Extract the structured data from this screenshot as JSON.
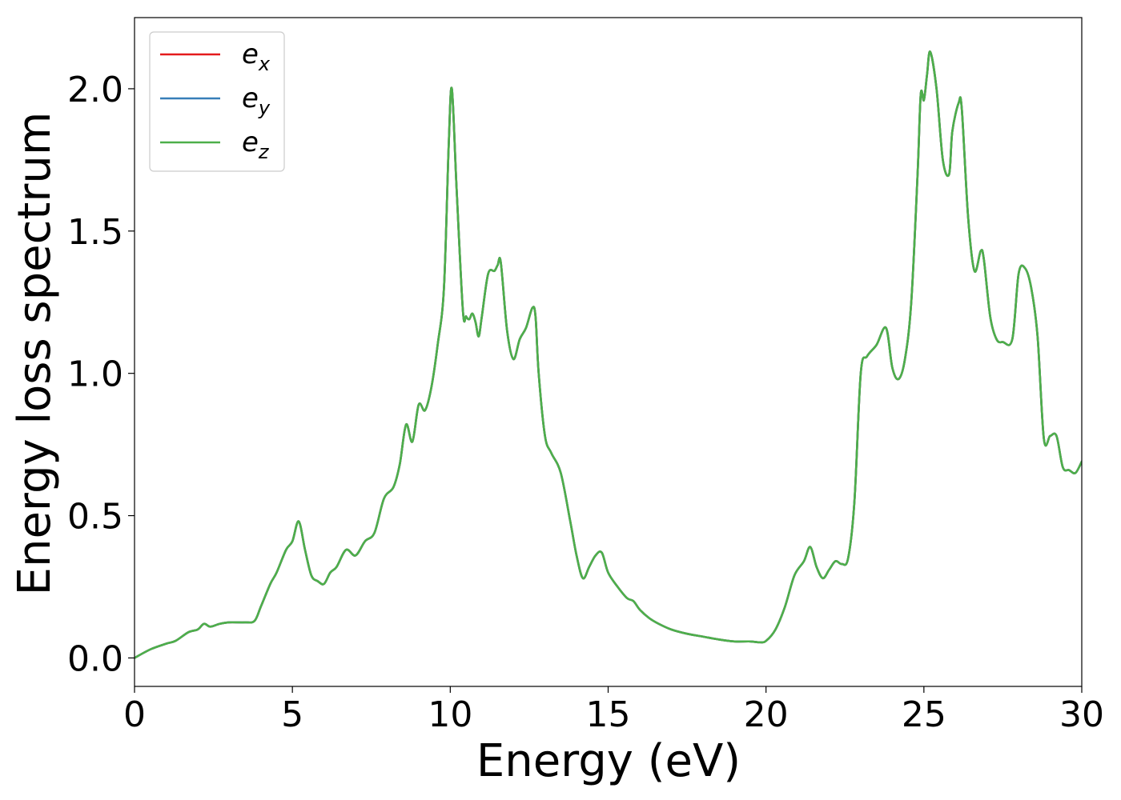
{
  "chart_data": {
    "type": "line",
    "title": "",
    "xlabel": "Energy (eV)",
    "ylabel": "Energy loss spectrum",
    "xlim": [
      0,
      30
    ],
    "ylim": [
      -0.1,
      2.25
    ],
    "xticks": [
      0,
      5,
      10,
      15,
      20,
      25,
      30
    ],
    "xtick_labels": [
      "0",
      "5",
      "10",
      "15",
      "20",
      "25",
      "30"
    ],
    "yticks": [
      0.0,
      0.5,
      1.0,
      1.5,
      2.0
    ],
    "ytick_labels": [
      "0.0",
      "0.5",
      "1.0",
      "1.5",
      "2.0"
    ],
    "grid": false,
    "legend_position": "top-left",
    "series": [
      {
        "name": "e_x",
        "label_base": "e",
        "label_sub": "x",
        "color": "#e41a1c"
      },
      {
        "name": "e_y",
        "label_base": "e",
        "label_sub": "y",
        "color": "#377eb8"
      },
      {
        "name": "e_z",
        "label_base": "e",
        "label_sub": "z",
        "color": "#4daf4a"
      }
    ],
    "x": [
      0,
      0.5,
      1.0,
      1.3,
      1.7,
      2.0,
      2.2,
      2.4,
      2.7,
      3.0,
      3.5,
      3.8,
      4.0,
      4.3,
      4.5,
      4.8,
      5.0,
      5.2,
      5.4,
      5.6,
      5.8,
      6.0,
      6.2,
      6.4,
      6.7,
      7.0,
      7.3,
      7.6,
      7.9,
      8.2,
      8.4,
      8.6,
      8.8,
      9.0,
      9.2,
      9.4,
      9.6,
      9.8,
      9.95,
      10.05,
      10.2,
      10.4,
      10.5,
      10.6,
      10.7,
      10.8,
      10.9,
      11.0,
      11.2,
      11.4,
      11.5,
      11.6,
      11.8,
      12.0,
      12.2,
      12.4,
      12.6,
      12.7,
      12.8,
      13.0,
      13.2,
      13.5,
      13.8,
      14.0,
      14.2,
      14.4,
      14.6,
      14.8,
      15.0,
      15.3,
      15.6,
      15.8,
      16.0,
      16.3,
      16.6,
      17.0,
      17.5,
      18.0,
      18.5,
      19.0,
      19.5,
      19.8,
      20.0,
      20.3,
      20.6,
      20.9,
      21.2,
      21.4,
      21.6,
      21.8,
      22.0,
      22.2,
      22.4,
      22.6,
      22.8,
      23.0,
      23.2,
      23.5,
      23.8,
      24.0,
      24.2,
      24.4,
      24.6,
      24.8,
      24.9,
      25.0,
      25.1,
      25.2,
      25.4,
      25.6,
      25.8,
      25.9,
      26.1,
      26.2,
      26.4,
      26.6,
      26.8,
      26.9,
      27.1,
      27.3,
      27.5,
      27.8,
      28.0,
      28.2,
      28.4,
      28.6,
      28.8,
      29.0,
      29.2,
      29.4,
      29.6,
      29.8,
      30.0
    ],
    "y": [
      0.0,
      0.03,
      0.05,
      0.06,
      0.09,
      0.1,
      0.12,
      0.11,
      0.12,
      0.125,
      0.125,
      0.13,
      0.18,
      0.26,
      0.3,
      0.38,
      0.41,
      0.48,
      0.38,
      0.29,
      0.27,
      0.26,
      0.3,
      0.32,
      0.38,
      0.36,
      0.41,
      0.44,
      0.56,
      0.6,
      0.68,
      0.82,
      0.76,
      0.89,
      0.87,
      0.95,
      1.1,
      1.3,
      1.8,
      2.0,
      1.65,
      1.22,
      1.2,
      1.19,
      1.21,
      1.18,
      1.13,
      1.2,
      1.35,
      1.36,
      1.38,
      1.39,
      1.15,
      1.05,
      1.12,
      1.16,
      1.23,
      1.2,
      1.0,
      0.78,
      0.72,
      0.65,
      0.48,
      0.36,
      0.28,
      0.32,
      0.36,
      0.37,
      0.3,
      0.25,
      0.21,
      0.2,
      0.17,
      0.14,
      0.12,
      0.1,
      0.085,
      0.075,
      0.065,
      0.058,
      0.058,
      0.055,
      0.06,
      0.1,
      0.18,
      0.29,
      0.34,
      0.39,
      0.32,
      0.28,
      0.31,
      0.34,
      0.33,
      0.35,
      0.55,
      1.0,
      1.06,
      1.1,
      1.16,
      1.02,
      0.98,
      1.05,
      1.25,
      1.7,
      1.98,
      1.96,
      2.05,
      2.13,
      2.0,
      1.75,
      1.7,
      1.85,
      1.95,
      1.93,
      1.55,
      1.36,
      1.43,
      1.4,
      1.2,
      1.12,
      1.11,
      1.12,
      1.35,
      1.37,
      1.3,
      1.13,
      0.77,
      0.78,
      0.78,
      0.67,
      0.66,
      0.65,
      0.69
    ]
  }
}
